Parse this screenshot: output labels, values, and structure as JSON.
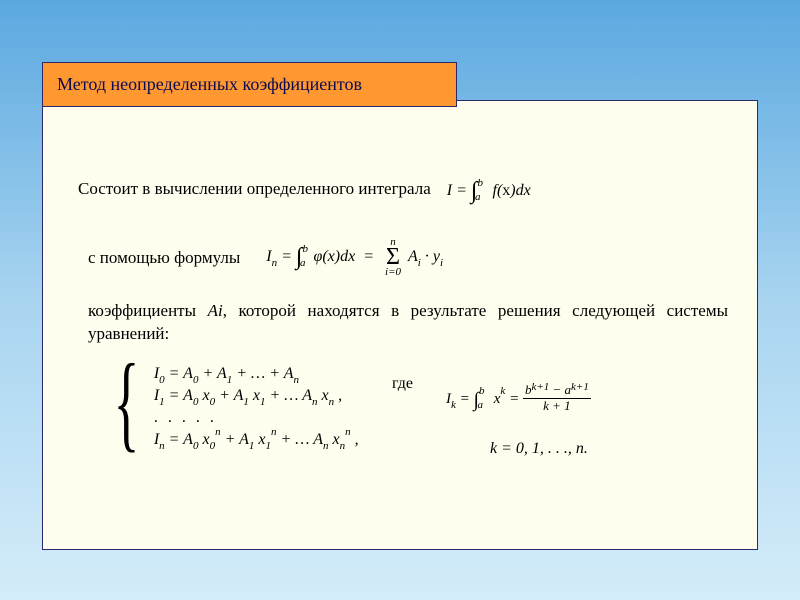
{
  "colors": {
    "bg_gradient_top": "#5ba8e0",
    "bg_gradient_mid": "#a8d4f0",
    "bg_gradient_bot": "#d4ecf9",
    "panel_bg": "#fffded",
    "panel_border": "#2a2a6a",
    "title_bg": "#ff9830",
    "title_text": "#0a0a50",
    "body_text": "#000000"
  },
  "typography": {
    "body_family": "Times New Roman",
    "body_size_pt": 13,
    "title_size_pt": 14
  },
  "title": "Метод  неопределенных  коэффициентов",
  "line1_text": "Состоит в вычислении определенного интеграла",
  "formula_main": "I = ∫_a^b f(x) dx",
  "line2_text": "с помощью формулы",
  "formula_approx": "I_n = ∫_a^b φ(x) dx = Σ_{i=0}^{n} A_i · y_i",
  "line3_text_a": "коэффициенты ",
  "line3_text_ai": "Аi",
  "line3_text_b": ", которой находятся в результате решения следующей системы уравнений:",
  "system": {
    "row0": "I₀ = A₀ + A₁ + … + Aₙ",
    "row1": "I₁ = A₀ x₀ + A₁ x₁ + … Aₙ xₙ ,",
    "row_dots": ". . . . .",
    "rown": "Iₙ = A₀ x₀ⁿ + A₁ x₁ⁿ + … Aₙ xₙⁿ ,"
  },
  "gde": "где",
  "formula_ik": "I_k = ∫_a^b x^k = (b^{k+1} − a^{k+1}) / (k + 1)",
  "k_range": "k = 0, 1, . . ., n."
}
